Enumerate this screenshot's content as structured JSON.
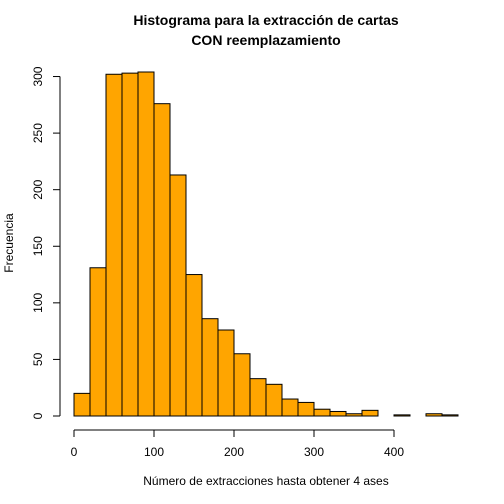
{
  "chart_data": {
    "type": "bar",
    "title_line1": "Histograma para la extracción de cartas",
    "title_line2": "CON reemplazamiento",
    "xlabel": "Número de extracciones hasta obtener 4 ases",
    "ylabel": "Frecuencia",
    "bar_color": "#FFA500",
    "border_color": "#000000",
    "bin_width": 20,
    "xlim": [
      0,
      480
    ],
    "ylim": [
      0,
      304
    ],
    "x_ticks": [
      0,
      100,
      200,
      300,
      400
    ],
    "y_ticks": [
      0,
      50,
      100,
      150,
      200,
      250,
      300
    ],
    "bins": [
      {
        "x0": 0,
        "x1": 20,
        "count": 20
      },
      {
        "x0": 20,
        "x1": 40,
        "count": 131
      },
      {
        "x0": 40,
        "x1": 60,
        "count": 302
      },
      {
        "x0": 60,
        "x1": 80,
        "count": 303
      },
      {
        "x0": 80,
        "x1": 100,
        "count": 304
      },
      {
        "x0": 100,
        "x1": 120,
        "count": 276
      },
      {
        "x0": 120,
        "x1": 140,
        "count": 213
      },
      {
        "x0": 140,
        "x1": 160,
        "count": 125
      },
      {
        "x0": 160,
        "x1": 180,
        "count": 86
      },
      {
        "x0": 180,
        "x1": 200,
        "count": 76
      },
      {
        "x0": 200,
        "x1": 220,
        "count": 55
      },
      {
        "x0": 220,
        "x1": 240,
        "count": 33
      },
      {
        "x0": 240,
        "x1": 260,
        "count": 28
      },
      {
        "x0": 260,
        "x1": 280,
        "count": 15
      },
      {
        "x0": 280,
        "x1": 300,
        "count": 12
      },
      {
        "x0": 300,
        "x1": 320,
        "count": 6
      },
      {
        "x0": 320,
        "x1": 340,
        "count": 4
      },
      {
        "x0": 340,
        "x1": 360,
        "count": 2
      },
      {
        "x0": 360,
        "x1": 380,
        "count": 5
      },
      {
        "x0": 380,
        "x1": 400,
        "count": 0
      },
      {
        "x0": 400,
        "x1": 420,
        "count": 1
      },
      {
        "x0": 420,
        "x1": 440,
        "count": 0
      },
      {
        "x0": 440,
        "x1": 460,
        "count": 2
      },
      {
        "x0": 460,
        "x1": 480,
        "count": 1
      }
    ]
  }
}
